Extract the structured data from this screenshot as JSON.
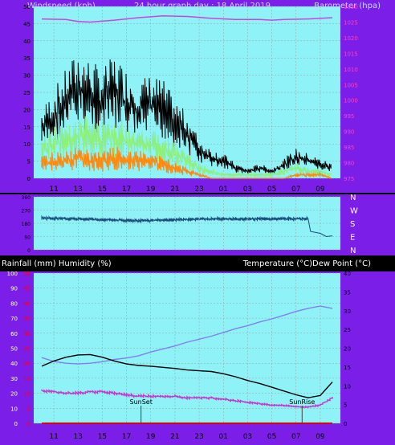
{
  "title": "24 hour graph day : 18 April 2019",
  "colors": {
    "frame": "#7b1fe8",
    "plot_bg": "#8ef2f7",
    "grid": "#9aa0a0",
    "text_dark": "#000000",
    "text_light": "#c8d8ff",
    "axis_red": "#e8003a",
    "axis_pink": "#ff40c0",
    "gust": "#000000",
    "wind": "#8cf07a",
    "wind_avg": "#ff8a10",
    "barometer": "#cc44dd",
    "direction": "#1a4a7a",
    "temperature": "#8080f0",
    "dewpoint": "#000000",
    "humidity": "#cc33cc",
    "rainfall": "#dd0000"
  },
  "chart_data": [
    {
      "id": "wind_baro",
      "type": "line",
      "left_axis_label": "Windspeed (kph)",
      "right_axis_label": "Barometer (hpa)",
      "x_ticks": [
        "11",
        "13",
        "15",
        "17",
        "19",
        "21",
        "23",
        "01",
        "03",
        "05",
        "07",
        "09"
      ],
      "left_ylim": [
        0,
        50
      ],
      "left_ticks": [
        "0",
        "5",
        "10",
        "15",
        "20",
        "25",
        "30",
        "35",
        "40",
        "45",
        "50"
      ],
      "right_ylim": [
        975,
        1030
      ],
      "right_ticks": [
        "975",
        "980",
        "985",
        "990",
        "995",
        "1000",
        "1005",
        "1010",
        "1015",
        "1020",
        "1025",
        "1030"
      ],
      "x_range_hours": [
        0,
        24
      ],
      "barometer": {
        "x": [
          0,
          2,
          3,
          4,
          6,
          8,
          10,
          12,
          14,
          16,
          18,
          19,
          20,
          22,
          24
        ],
        "y": [
          1026.0,
          1025.8,
          1025.2,
          1025.0,
          1025.6,
          1026.4,
          1027.0,
          1026.8,
          1026.2,
          1025.8,
          1025.8,
          1025.6,
          1025.8,
          1026.0,
          1026.4
        ]
      },
      "gust": {
        "x": [
          0,
          1,
          2,
          3,
          4,
          5,
          6,
          7,
          8,
          9,
          10,
          11,
          12,
          13,
          14,
          15,
          16,
          17,
          18,
          19,
          20,
          21,
          22,
          23,
          24
        ],
        "y": [
          14,
          18,
          22,
          26,
          24,
          22,
          25,
          22,
          20,
          21,
          20,
          16,
          13,
          8,
          6,
          5,
          3,
          2,
          3,
          2,
          4,
          6,
          5,
          4,
          3
        ]
      },
      "wind": {
        "x": [
          0,
          1,
          2,
          3,
          4,
          5,
          6,
          7,
          8,
          9,
          10,
          11,
          12,
          13,
          14,
          15,
          16,
          17,
          18,
          19,
          20,
          21,
          22,
          23,
          24
        ],
        "y": [
          8,
          10,
          11,
          13,
          12,
          11,
          12,
          11,
          10,
          10,
          9,
          7,
          5,
          3,
          2,
          1,
          1,
          1,
          1,
          1,
          2,
          3,
          2,
          2,
          1
        ]
      },
      "wind_avg": {
        "x": [
          0,
          1,
          2,
          3,
          4,
          5,
          6,
          7,
          8,
          9,
          10,
          11,
          12,
          13,
          14,
          15,
          16,
          17,
          18,
          19,
          20,
          21,
          22,
          23,
          24
        ],
        "y": [
          4,
          5,
          5,
          6,
          5,
          5,
          6,
          5,
          5,
          5,
          4,
          3,
          2,
          1,
          0,
          0,
          0,
          0,
          0,
          0,
          0,
          1,
          1,
          1,
          0
        ]
      }
    },
    {
      "id": "wind_direction",
      "type": "line",
      "left_ticks": [
        "360",
        "270",
        "180",
        "90",
        "0"
      ],
      "right_labels": [
        "N",
        "W",
        "S",
        "E",
        "N"
      ],
      "ylim": [
        0,
        360
      ],
      "direction": {
        "x": [
          0,
          1,
          2,
          3,
          4,
          5,
          6,
          7,
          8,
          9,
          10,
          11,
          12,
          13,
          14,
          15,
          16,
          17,
          18,
          19,
          20,
          21,
          22,
          22.2,
          23,
          23.5,
          24
        ],
        "y": [
          215,
          213,
          212,
          210,
          208,
          205,
          202,
          200,
          198,
          199,
          201,
          204,
          206,
          208,
          209,
          210,
          210,
          210,
          210,
          210,
          210,
          210,
          210,
          125,
          112,
          90,
          95
        ]
      }
    },
    {
      "id": "temp_humidity",
      "type": "line",
      "left_axis_label": "Rainfall (mm)  Humidity (%)",
      "right_axis_label": "Temperature (°C)Dew Point (°C)",
      "x_ticks": [
        "11",
        "13",
        "15",
        "17",
        "19",
        "21",
        "23",
        "01",
        "03",
        "05",
        "07",
        "09"
      ],
      "humidity_ylim": [
        0,
        100
      ],
      "humidity_ticks": [
        "0",
        "10",
        "20",
        "30",
        "40",
        "50",
        "60",
        "70",
        "80",
        "90",
        "100"
      ],
      "rain_ylim": [
        0,
        50
      ],
      "rain_ticks": [
        "0",
        "5",
        "10",
        "15",
        "20",
        "25",
        "30",
        "35",
        "40",
        "45",
        "50"
      ],
      "temp_ylim": [
        0,
        40
      ],
      "temp_ticks": [
        "0",
        "5",
        "10",
        "15",
        "20",
        "25",
        "30",
        "35",
        "40"
      ],
      "annotations": [
        {
          "text": "SunSet",
          "x_hour": 8.2
        },
        {
          "text": "SunRise",
          "x_hour": 21.5
        }
      ],
      "temperature": {
        "x": [
          0,
          1,
          2,
          3,
          4,
          5,
          6,
          7,
          8,
          9,
          10,
          11,
          12,
          13,
          14,
          15,
          16,
          17,
          18,
          19,
          20,
          21,
          22,
          23,
          24
        ],
        "y": [
          17.5,
          16.5,
          16.0,
          15.8,
          16.0,
          16.4,
          17.0,
          17.4,
          18.0,
          19.0,
          19.8,
          20.6,
          21.6,
          22.4,
          23.2,
          24.2,
          25.2,
          26.0,
          27.0,
          27.8,
          28.8,
          29.8,
          30.6,
          31.2,
          30.6
        ]
      },
      "dewpoint": {
        "x": [
          0,
          1,
          2,
          3,
          4,
          5,
          6,
          7,
          8,
          9,
          10,
          11,
          12,
          13,
          14,
          15,
          16,
          17,
          18,
          19,
          20,
          21,
          22,
          23,
          24
        ],
        "y": [
          15.2,
          16.6,
          17.6,
          18.2,
          18.3,
          17.6,
          16.6,
          15.8,
          15.4,
          15.2,
          14.9,
          14.6,
          14.2,
          14.0,
          13.8,
          13.2,
          12.4,
          11.4,
          10.6,
          9.6,
          8.6,
          7.6,
          6.8,
          7.4,
          11.0
        ]
      },
      "humidity": {
        "x": [
          0,
          1,
          2,
          3,
          4,
          5,
          6,
          7,
          8,
          9,
          10,
          11,
          12,
          13,
          14,
          15,
          16,
          17,
          18,
          19,
          20,
          21,
          22,
          23,
          24
        ],
        "y": [
          22,
          21,
          20,
          20,
          21,
          21,
          20,
          19,
          18,
          18,
          18,
          18,
          17,
          17,
          17,
          16,
          15,
          14,
          13,
          12,
          12,
          11,
          11,
          12,
          17
        ]
      },
      "rainfall": {
        "x": [
          0,
          24
        ],
        "y": [
          0,
          0
        ]
      }
    }
  ]
}
